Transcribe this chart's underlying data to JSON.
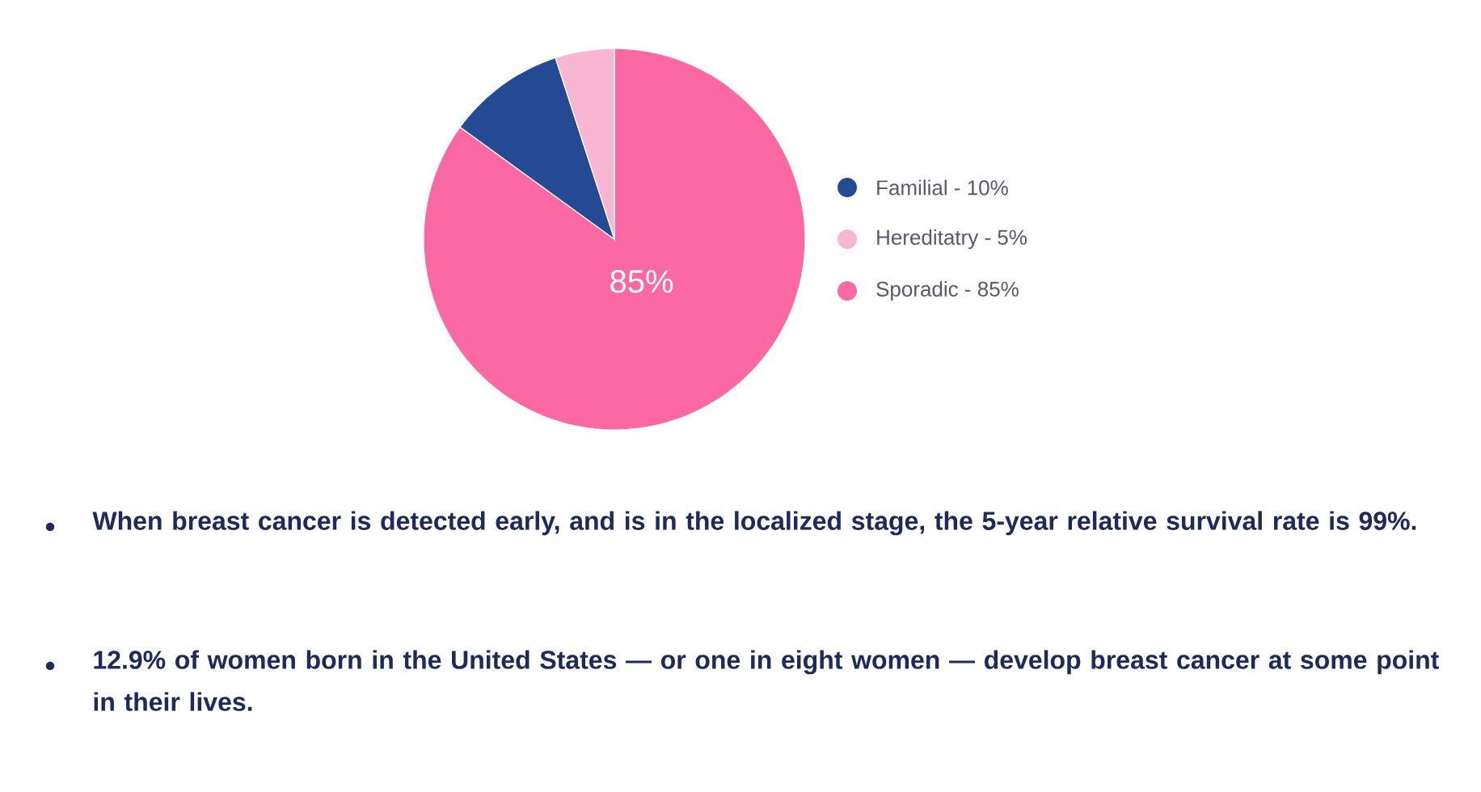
{
  "chart_data": {
    "type": "pie",
    "categories": [
      "Familial - 10%",
      "Hereditatry - 5%",
      "Sporadic - 85%"
    ],
    "values": [
      10,
      5,
      85
    ],
    "colors": [
      "#234a93",
      "#f8b6d2",
      "#fc68a2"
    ],
    "value_labels": [
      null,
      null,
      "85%"
    ],
    "legend": "right",
    "annotations": [
      "When breast cancer is detected early, and is in the localized stage, the 5-year relative survival rate is 99%.",
      "12.9% of women born in the United States — or one in eight women — develop breast cancer at some point in their lives."
    ]
  }
}
